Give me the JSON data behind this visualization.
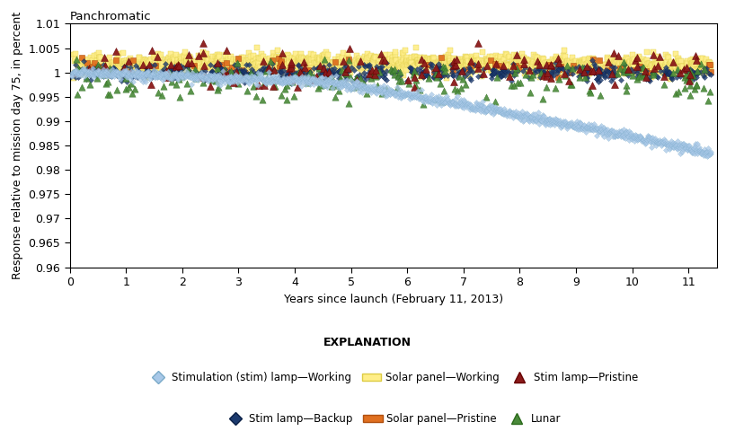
{
  "title": "Panchromatic",
  "xlabel": "Years since launch (February 11, 2013)",
  "ylabel": "Response relative to mission day 75, in percent",
  "xlim": [
    0,
    11.5
  ],
  "ylim": [
    0.96,
    1.01
  ],
  "yticks": [
    0.96,
    0.965,
    0.97,
    0.975,
    0.98,
    0.985,
    0.99,
    0.995,
    1.0,
    1.005,
    1.01
  ],
  "ytick_labels": [
    "0.96",
    "0.965",
    "0.97",
    "0.975",
    "0.98",
    "0.985",
    "0.99",
    "0.995",
    "1",
    "1.005",
    "1.01"
  ],
  "xticks": [
    0,
    1,
    2,
    3,
    4,
    5,
    6,
    7,
    8,
    9,
    10,
    11
  ],
  "colors": {
    "stim_working": "#A8C8E8",
    "stim_working_edge": "#7AAAC8",
    "solar_working": "#FFEE88",
    "solar_working_edge": "#DDCC44",
    "stim_pristine": "#8B1A1A",
    "stim_pristine_edge": "#660000",
    "stim_backup": "#1C3A6E",
    "stim_backup_edge": "#0A1F45",
    "solar_pristine": "#E07020",
    "solar_pristine_edge": "#B05010",
    "lunar": "#4A8A3A",
    "lunar_edge": "#2A6A1A"
  },
  "legend_labels": {
    "stim_working": "Stimulation (stim) lamp—Working",
    "solar_working": "Solar panel—Working",
    "stim_pristine": "Stim lamp—Pristine",
    "stim_backup": "Stim lamp—Backup",
    "solar_pristine": "Solar panel—Pristine",
    "lunar": "Lunar"
  }
}
